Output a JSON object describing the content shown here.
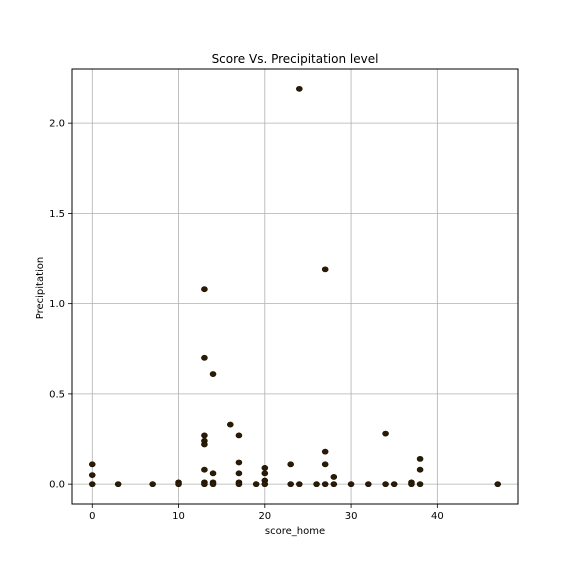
{
  "chart_data": {
    "type": "scatter",
    "title": "Score Vs. Precipitation level",
    "xlabel": "score_home",
    "ylabel": "Precipitation",
    "xlim": [
      -2.35,
      49.35
    ],
    "ylim": [
      -0.11,
      2.3
    ],
    "xticks": [
      0,
      10,
      20,
      30,
      40
    ],
    "yticks": [
      0.0,
      0.5,
      1.0,
      1.5,
      2.0
    ],
    "xtick_labels": [
      "0",
      "10",
      "20",
      "30",
      "40"
    ],
    "ytick_labels": [
      "0.0",
      "0.5",
      "1.0",
      "1.5",
      "2.0"
    ],
    "grid": true,
    "legend": "none",
    "colors": {
      "marker_fill": "#2b1a05",
      "marker_edge": "#1a1000",
      "grid": "#b0b0b0",
      "axes": "#000000"
    },
    "points": [
      [
        0,
        0.11
      ],
      [
        0,
        0.05
      ],
      [
        0,
        0.0
      ],
      [
        3,
        0.0
      ],
      [
        7,
        0.0
      ],
      [
        10,
        0.01
      ],
      [
        10,
        0.0
      ],
      [
        13,
        1.08
      ],
      [
        13,
        0.7
      ],
      [
        13,
        0.27
      ],
      [
        13,
        0.24
      ],
      [
        13,
        0.22
      ],
      [
        13,
        0.08
      ],
      [
        13,
        0.01
      ],
      [
        13,
        0.0
      ],
      [
        14,
        0.61
      ],
      [
        14,
        0.06
      ],
      [
        14,
        0.01
      ],
      [
        14,
        0.0
      ],
      [
        16,
        0.33
      ],
      [
        17,
        0.27
      ],
      [
        17,
        0.12
      ],
      [
        17,
        0.06
      ],
      [
        17,
        0.01
      ],
      [
        17,
        0.0
      ],
      [
        19,
        0.0
      ],
      [
        20,
        0.09
      ],
      [
        20,
        0.06
      ],
      [
        20,
        0.02
      ],
      [
        20,
        0.0
      ],
      [
        23,
        0.11
      ],
      [
        23,
        0.0
      ],
      [
        24,
        2.19
      ],
      [
        24,
        0.0
      ],
      [
        26,
        0.0
      ],
      [
        27,
        1.19
      ],
      [
        27,
        0.18
      ],
      [
        27,
        0.11
      ],
      [
        27,
        0.0
      ],
      [
        28,
        0.04
      ],
      [
        28,
        0.0
      ],
      [
        30,
        0.0
      ],
      [
        32,
        0.0
      ],
      [
        34,
        0.28
      ],
      [
        34,
        0.0
      ],
      [
        35,
        0.0
      ],
      [
        37,
        0.01
      ],
      [
        37,
        0.0
      ],
      [
        38,
        0.14
      ],
      [
        38,
        0.08
      ],
      [
        38,
        0.0
      ],
      [
        47,
        0.0
      ]
    ]
  }
}
